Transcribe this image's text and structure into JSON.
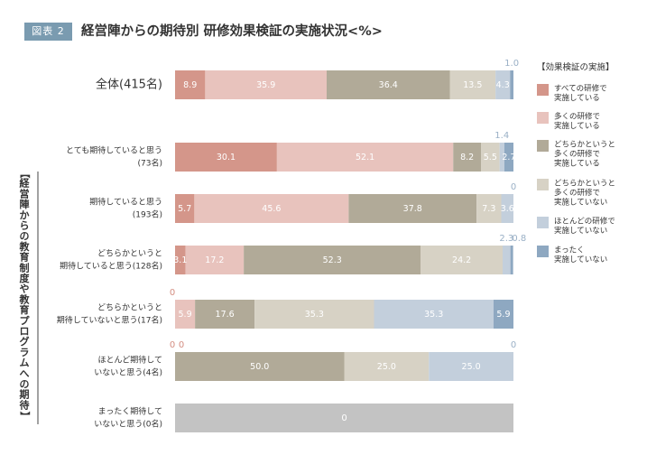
{
  "figure": {
    "badge": "図表 2",
    "title": "経営陣からの期待別 研修効果検証の実施状況<%>"
  },
  "chart_data": {
    "type": "bar",
    "orientation": "horizontal",
    "stacked": true,
    "xlim": [
      0,
      100
    ],
    "group_label": "【経営陣からの教育制度や教育プログラムへの期待】",
    "legend_title": "【効果検証の実施】",
    "legend_position": "right",
    "categories": [
      {
        "lines": [
          "全体(415名)"
        ]
      },
      {
        "lines": [
          "とても期待していると思う",
          "(73名)"
        ]
      },
      {
        "lines": [
          "期待していると思う",
          "(193名)"
        ]
      },
      {
        "lines": [
          "どちらかというと",
          "期待していると思う(128名)"
        ]
      },
      {
        "lines": [
          "どちらかというと",
          "期待していないと思う(17名)"
        ]
      },
      {
        "lines": [
          "ほとんど期待して",
          "いないと思う(4名)"
        ]
      },
      {
        "lines": [
          "まったく期待して",
          "いないと思う(0名)"
        ]
      }
    ],
    "series": [
      {
        "name": "すべての研修で実施している",
        "legend_lines": [
          "すべての研修で",
          "実施している"
        ],
        "color": "#d4968a",
        "values": [
          8.9,
          30.1,
          5.7,
          3.1,
          0,
          0,
          null
        ]
      },
      {
        "name": "多くの研修で実施している",
        "legend_lines": [
          "多くの研修で",
          "実施している"
        ],
        "color": "#e8c3bd",
        "values": [
          35.9,
          52.1,
          45.6,
          17.2,
          5.9,
          0,
          null
        ]
      },
      {
        "name": "どちらかというと多くの研修で実施している",
        "legend_lines": [
          "どちらかというと",
          "多くの研修で",
          "実施している"
        ],
        "color": "#b1aa98",
        "values": [
          36.4,
          8.2,
          37.8,
          52.3,
          17.6,
          50.0,
          null
        ]
      },
      {
        "name": "どちらかというと多くの研修で実施していない",
        "legend_lines": [
          "どちらかというと",
          "多くの研修で",
          "実施していない"
        ],
        "color": "#d7d2c5",
        "values": [
          13.5,
          5.5,
          7.3,
          24.2,
          35.3,
          25.0,
          null
        ]
      },
      {
        "name": "ほとんどの研修で実施していない",
        "legend_lines": [
          "ほとんどの研修で",
          "実施していない"
        ],
        "color": "#c3cfdc",
        "values": [
          4.3,
          1.4,
          3.6,
          2.3,
          35.3,
          25.0,
          null
        ]
      },
      {
        "name": "まったく実施していない",
        "legend_lines": [
          "まったく",
          "実施していない"
        ],
        "color": "#8ea8c1",
        "values": [
          1.0,
          2.7,
          0,
          0.8,
          5.9,
          0,
          null
        ]
      }
    ],
    "empty_row": {
      "value_label": "0",
      "color": "#c3c3c3"
    }
  }
}
